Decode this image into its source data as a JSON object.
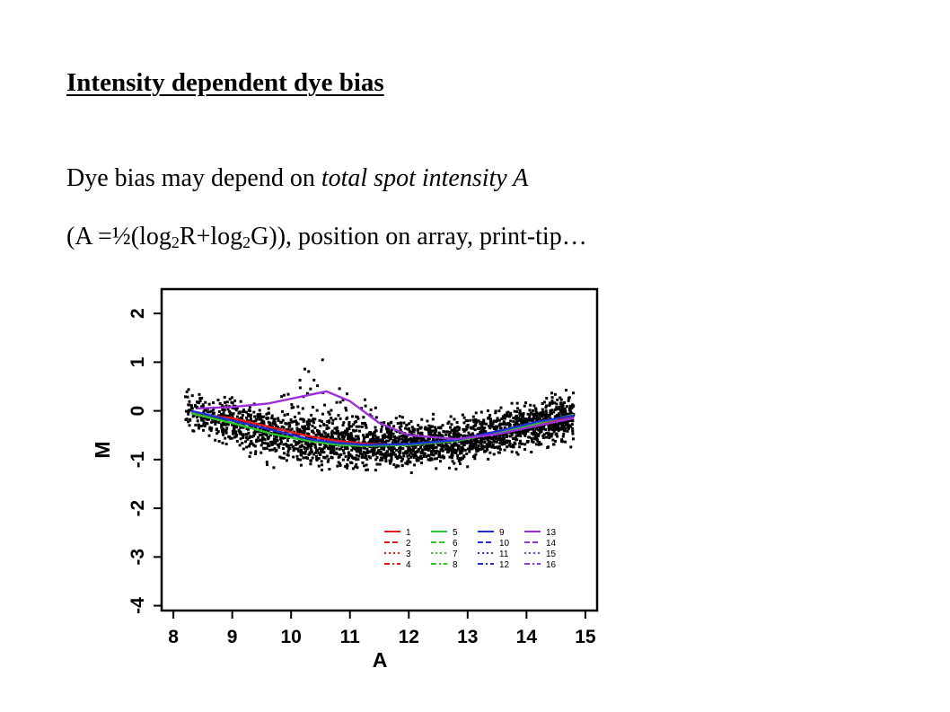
{
  "slide": {
    "title": "Intensity dependent dye bias",
    "line1_prefix": "Dye bias may depend on ",
    "line1_emph": "total spot intensity A",
    "line2_a": "(A =½(log",
    "line2_sub1": "2",
    "line2_b": "R+log",
    "line2_sub2": "2",
    "line2_c": "G)), position on array, print-tip…"
  },
  "chart_data": {
    "type": "scatter",
    "xlabel": "A",
    "ylabel": "M",
    "xlim": [
      7.8,
      15.2
    ],
    "ylim": [
      -4.1,
      2.5
    ],
    "xticks": [
      8,
      9,
      10,
      11,
      12,
      13,
      14,
      15
    ],
    "yticks": [
      -4,
      -3,
      -2,
      -1,
      0,
      1,
      2
    ],
    "grid": false,
    "legend_position": "bottom-right",
    "legend_entries": [
      "1",
      "2",
      "3",
      "4",
      "5",
      "6",
      "7",
      "8",
      "9",
      "10",
      "11",
      "12",
      "13",
      "14",
      "15",
      "16"
    ],
    "series_colors": [
      "#e31a1c",
      "#2ec42e",
      "#1f2fd6",
      "#9b30d9"
    ],
    "series": [
      {
        "name": "1",
        "x": [
          8.3,
          9.0,
          9.7,
          10.3,
          10.8,
          11.3,
          12.0,
          12.8,
          13.5,
          14.2,
          14.8
        ],
        "y": [
          -0.05,
          -0.15,
          -0.35,
          -0.52,
          -0.62,
          -0.68,
          -0.7,
          -0.62,
          -0.45,
          -0.28,
          -0.12
        ]
      },
      {
        "name": "5",
        "x": [
          8.3,
          9.0,
          9.7,
          10.3,
          10.8,
          11.3,
          12.0,
          12.8,
          13.5,
          14.2,
          14.8
        ],
        "y": [
          -0.05,
          -0.25,
          -0.48,
          -0.62,
          -0.7,
          -0.72,
          -0.7,
          -0.62,
          -0.45,
          -0.25,
          -0.08
        ]
      },
      {
        "name": "9",
        "x": [
          8.3,
          9.0,
          9.7,
          10.3,
          10.8,
          11.3,
          12.0,
          12.8,
          13.5,
          14.2,
          14.8
        ],
        "y": [
          0.0,
          -0.2,
          -0.4,
          -0.58,
          -0.66,
          -0.7,
          -0.68,
          -0.6,
          -0.42,
          -0.22,
          -0.1
        ]
      },
      {
        "name": "13",
        "x": [
          8.4,
          9.0,
          9.6,
          10.2,
          10.6,
          11.0,
          11.5,
          12.0,
          12.8,
          13.5,
          14.2,
          14.8
        ],
        "y": [
          0.05,
          0.08,
          0.15,
          0.3,
          0.4,
          0.2,
          -0.25,
          -0.5,
          -0.58,
          -0.48,
          -0.3,
          -0.15
        ]
      }
    ]
  }
}
